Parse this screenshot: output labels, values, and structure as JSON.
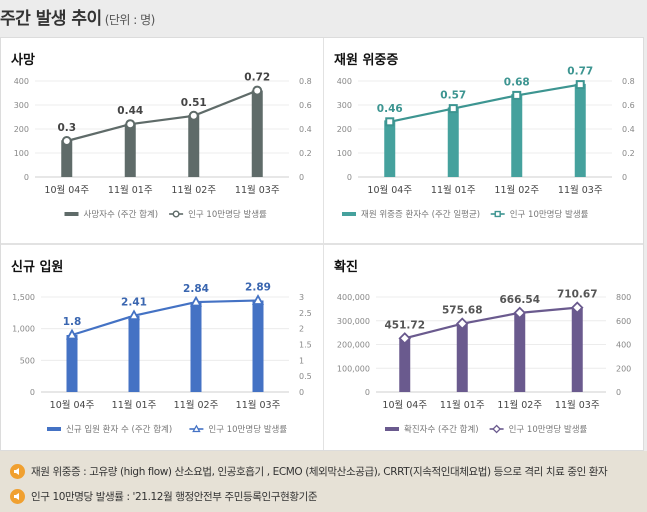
{
  "header": {
    "title": "주간 발생 추이",
    "unit": "(단위 : 명)"
  },
  "notes": [
    {
      "icon": "speaker-icon",
      "text": "재원 위중증 : 고유량 (high flow) 산소요법, 인공호흡기 , ECMO (체외막산소공급), CRRT(지속적인대체요법) 등으로 격리 치료 중인 환자"
    },
    {
      "icon": "speaker-icon",
      "text": "인구 10만명당 발생률 : '21.12월 행정안전부 주민등록인구현황기준"
    }
  ],
  "chart_data": [
    {
      "type": "bar",
      "title": "사망",
      "categories": [
        "10월 04주",
        "11월 01주",
        "11월 02주",
        "11월 03주"
      ],
      "series": [
        {
          "name": "사망자수 (주간 합계)",
          "kind": "bar",
          "axis": "left",
          "values": [
            153,
            222,
            258,
            360
          ]
        },
        {
          "name": "인구 10만명당 발생률",
          "kind": "line",
          "axis": "right",
          "marker": "circle",
          "values": [
            0.3,
            0.44,
            0.51,
            0.72
          ],
          "labels": [
            "0.3",
            "0.44",
            "0.51",
            "0.72"
          ]
        }
      ],
      "ylim_left": [
        0,
        400
      ],
      "yticks_left": [
        "0",
        "100",
        "200",
        "300",
        "400"
      ],
      "ylim_right": [
        0,
        0.8
      ],
      "yticks_right": [
        "0",
        "0.2",
        "0.4",
        "0.6",
        "0.8"
      ],
      "colors": {
        "bar": "#5f6b69",
        "line": "#5f6b69",
        "label": "#444444"
      },
      "legend": "bottom",
      "grid": true
    },
    {
      "type": "bar",
      "title": "재원 위중증",
      "categories": [
        "10월 04주",
        "11월 01주",
        "11월 02주",
        "11월 03주"
      ],
      "series": [
        {
          "name": "재원 위중증 환자수 (주간 일평균)",
          "kind": "bar",
          "axis": "left",
          "values": [
            236,
            290,
            345,
            388
          ]
        },
        {
          "name": "인구 10만명당 발생률",
          "kind": "line",
          "axis": "right",
          "marker": "square",
          "values": [
            0.46,
            0.57,
            0.68,
            0.77
          ],
          "labels": [
            "0.46",
            "0.57",
            "0.68",
            "0.77"
          ]
        }
      ],
      "ylim_left": [
        0,
        400
      ],
      "yticks_left": [
        "0",
        "100",
        "200",
        "300",
        "400"
      ],
      "ylim_right": [
        0,
        0.8
      ],
      "yticks_right": [
        "0",
        "0.2",
        "0.4",
        "0.6",
        "0.8"
      ],
      "colors": {
        "bar": "#45a19d",
        "line": "#3d9591",
        "label": "#3d9591"
      },
      "legend": "bottom",
      "grid": true
    },
    {
      "type": "bar",
      "title": "신규 입원",
      "categories": [
        "10월 04주",
        "11월 01주",
        "11월 02주",
        "11월 03주"
      ],
      "series": [
        {
          "name": "신규 입원 환자 수 (주간 합계)",
          "kind": "bar",
          "axis": "left",
          "values": [
            900,
            1200,
            1420,
            1445
          ]
        },
        {
          "name": "인구 10만명당 발생률",
          "kind": "line",
          "axis": "right",
          "marker": "triangle",
          "values": [
            1.8,
            2.41,
            2.84,
            2.89
          ],
          "labels": [
            "1.8",
            "2.41",
            "2.84",
            "2.89"
          ]
        }
      ],
      "ylim_left": [
        0,
        1500
      ],
      "yticks_left": [
        "0",
        "500",
        "1,000",
        "1,500"
      ],
      "ylim_right": [
        0,
        3
      ],
      "yticks_right": [
        "0",
        "0.5",
        "1",
        "1.5",
        "2",
        "2.5",
        "3"
      ],
      "colors": {
        "bar": "#4472c4",
        "line": "#4472c4",
        "label": "#3a66b0"
      },
      "legend": "bottom",
      "grid": true
    },
    {
      "type": "bar",
      "title": "확진",
      "categories": [
        "10월 04주",
        "11월 01주",
        "11월 02주",
        "11월 03주"
      ],
      "series": [
        {
          "name": "확진자수 (주간 합계)",
          "kind": "bar",
          "axis": "left",
          "values": [
            228000,
            288000,
            335000,
            358000
          ]
        },
        {
          "name": "인구 10만명당 발생률",
          "kind": "line",
          "axis": "right",
          "marker": "diamond",
          "values": [
            451.72,
            575.68,
            666.54,
            710.67
          ],
          "labels": [
            "451.72",
            "575.68",
            "666.54",
            "710.67"
          ]
        }
      ],
      "ylim_left": [
        0,
        400000
      ],
      "yticks_left": [
        "0",
        "100,000",
        "200,000",
        "300,000",
        "400,000"
      ],
      "ylim_right": [
        0,
        800
      ],
      "yticks_right": [
        "0",
        "200",
        "400",
        "600",
        "800"
      ],
      "colors": {
        "bar": "#6a5a8e",
        "line": "#6a5a8e",
        "label": "#555555"
      },
      "legend": "bottom",
      "grid": true
    }
  ]
}
